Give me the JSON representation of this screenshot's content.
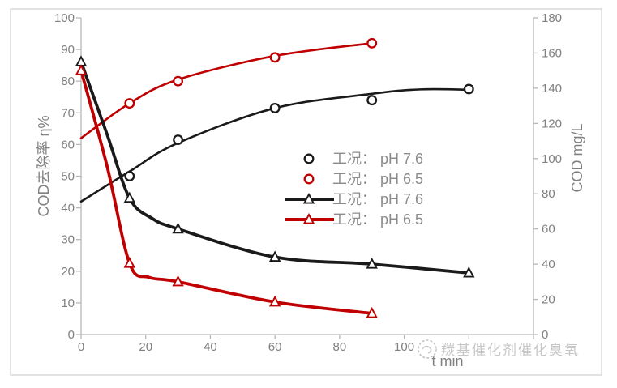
{
  "colors": {
    "series_black": "#1a1a1a",
    "series_red": "#c00000",
    "axis_line": "#b7b7b7",
    "tick_text": "#808080",
    "title_text": "#808080",
    "legend_text": "#8c8c8c",
    "watermark": "#c6c6c6",
    "frame_border": "#d9d9d9",
    "background": "#ffffff"
  },
  "watermark": {
    "text": "羰基催化剂催化臭氧",
    "icon": "watermark-logo"
  },
  "chart_data": {
    "type": "line",
    "title": "",
    "xlabel": "t min",
    "ylabel_left": "COD去除率 η%",
    "ylabel_right": "COD mg/L",
    "x_axis": {
      "min": 0,
      "max": 140,
      "tick_step": 20,
      "tick_labels": [
        "0",
        "20",
        "40",
        "60",
        "80",
        "100"
      ]
    },
    "y_axis_left": {
      "min": 0,
      "max": 100,
      "tick_step": 10,
      "tick_labels": [
        "0",
        "10",
        "20",
        "30",
        "40",
        "50",
        "60",
        "70",
        "80",
        "90",
        "100"
      ]
    },
    "y_axis_right": {
      "min": 0,
      "max": 180,
      "tick_step": 20,
      "tick_labels": [
        "0",
        "20",
        "40",
        "60",
        "80",
        "100",
        "120",
        "140",
        "160",
        "180"
      ]
    },
    "grid": false,
    "legend_position": "inside-right",
    "legend": [
      {
        "label": "工况： pH 7.6",
        "marker": "circle",
        "color": "#1a1a1a",
        "line": false
      },
      {
        "label": "工况： pH 6.5",
        "marker": "circle",
        "color": "#c00000",
        "line": false
      },
      {
        "label": "工况： pH 7.6",
        "marker": "triangle",
        "color": "#1a1a1a",
        "line": true
      },
      {
        "label": "工况： pH 6.5",
        "marker": "triangle",
        "color": "#c00000",
        "line": true
      }
    ],
    "series": [
      {
        "name": "cod-removal-ph7.6",
        "legend": "工况： pH 7.6",
        "axis": "left",
        "marker": "circle",
        "color": "#1a1a1a",
        "line_width": 2.6,
        "points": [
          [
            15,
            50
          ],
          [
            30,
            61.5
          ],
          [
            60,
            71.5
          ],
          [
            90,
            74
          ],
          [
            120,
            77.5
          ]
        ],
        "curve": [
          [
            0,
            42
          ],
          [
            15,
            51.5
          ],
          [
            30,
            60.5
          ],
          [
            60,
            71.5
          ],
          [
            90,
            76
          ],
          [
            105,
            77.4
          ],
          [
            120,
            77.3
          ]
        ]
      },
      {
        "name": "cod-removal-ph6.5",
        "legend": "工况： pH 6.5",
        "axis": "left",
        "marker": "circle",
        "color": "#c00000",
        "line_width": 2.6,
        "points": [
          [
            15,
            73
          ],
          [
            30,
            80
          ],
          [
            60,
            87.5
          ],
          [
            90,
            92
          ]
        ],
        "curve": [
          [
            0,
            62
          ],
          [
            15,
            73
          ],
          [
            30,
            80.5
          ],
          [
            60,
            88
          ],
          [
            90,
            92
          ]
        ]
      },
      {
        "name": "cod-concentration-ph7.6",
        "legend": "工况： pH 7.6",
        "axis": "right",
        "marker": "triangle",
        "color": "#1a1a1a",
        "line_width": 3.8,
        "points": [
          [
            0,
            155
          ],
          [
            15,
            77.5
          ],
          [
            30,
            60
          ],
          [
            60,
            44
          ],
          [
            90,
            40
          ],
          [
            120,
            35
          ]
        ],
        "curve": [
          [
            0,
            155
          ],
          [
            8,
            114
          ],
          [
            15,
            77.5
          ],
          [
            22,
            66
          ],
          [
            30,
            60
          ],
          [
            60,
            44
          ],
          [
            90,
            40
          ],
          [
            120,
            35
          ]
        ]
      },
      {
        "name": "cod-concentration-ph6.5",
        "legend": "工况： pH 6.5",
        "axis": "right",
        "marker": "triangle",
        "color": "#c00000",
        "line_width": 3.8,
        "points": [
          [
            0,
            150
          ],
          [
            15,
            40.5
          ],
          [
            30,
            30
          ],
          [
            60,
            18.5
          ],
          [
            90,
            12
          ]
        ],
        "curve": [
          [
            0,
            150
          ],
          [
            8,
            96
          ],
          [
            15,
            40.5
          ],
          [
            21,
            32.5
          ],
          [
            30,
            30
          ],
          [
            60,
            18.5
          ],
          [
            90,
            12
          ]
        ]
      }
    ]
  }
}
